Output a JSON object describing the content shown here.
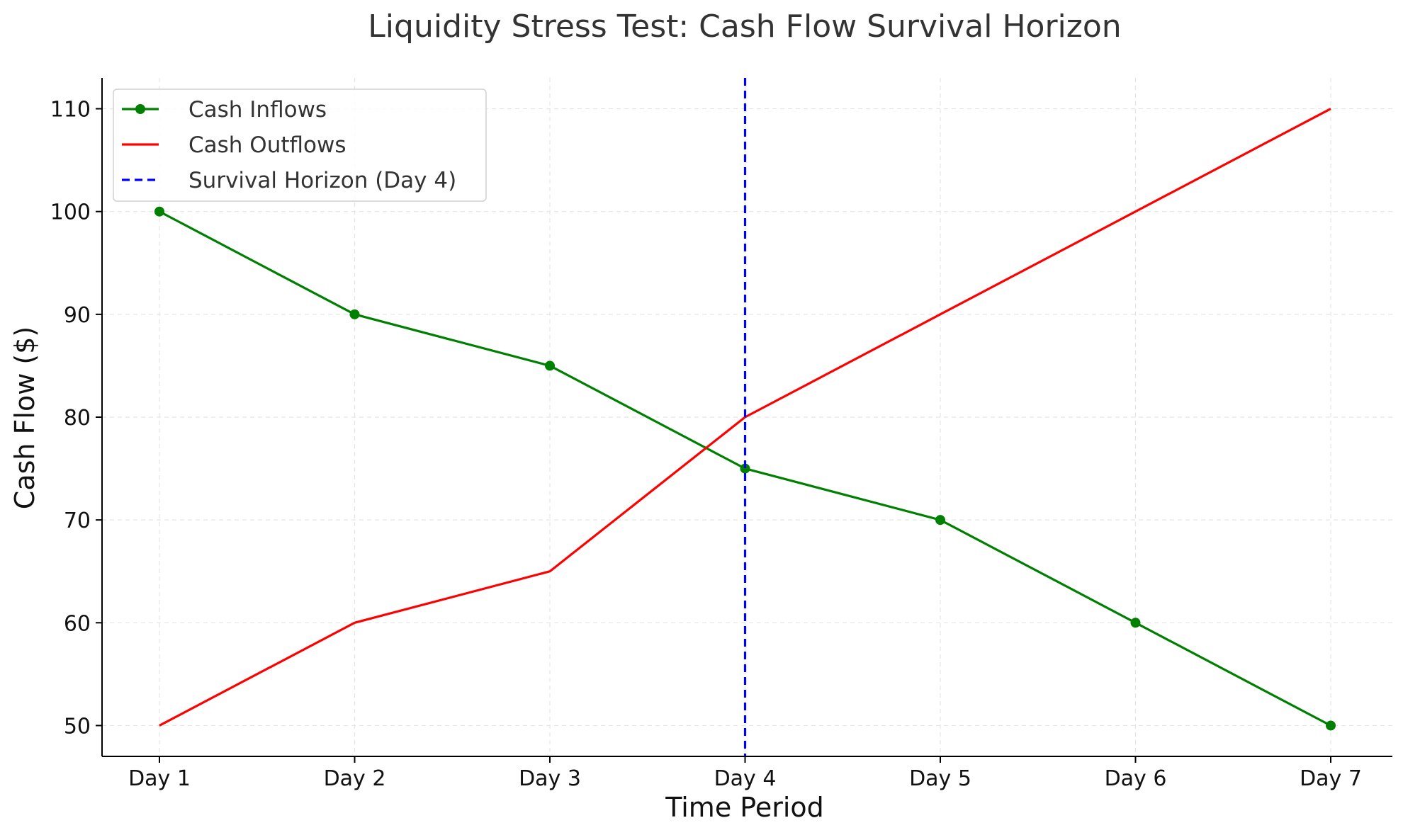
{
  "chart_data": {
    "type": "line",
    "title": "Liquidity Stress Test: Cash Flow Survival Horizon",
    "xlabel": "Time Period",
    "ylabel": "Cash Flow ($)",
    "categories": [
      "Day 1",
      "Day 2",
      "Day 3",
      "Day 4",
      "Day 5",
      "Day 6",
      "Day 7"
    ],
    "ylim": [
      47,
      113
    ],
    "yticks": [
      50,
      60,
      70,
      80,
      90,
      100,
      110
    ],
    "grid": true,
    "legend_position": "top-left",
    "series": [
      {
        "name": "Cash Inflows",
        "values": [
          100,
          90,
          85,
          75,
          70,
          60,
          50
        ],
        "color": "#008000",
        "markers": true,
        "style": "solid"
      },
      {
        "name": "Cash Outflows",
        "values": [
          50,
          60,
          65,
          80,
          90,
          100,
          110
        ],
        "color": "#ff0000",
        "markers": false,
        "style": "solid"
      }
    ],
    "vline": {
      "name": "Survival Horizon (Day 4)",
      "category": "Day 4",
      "color": "#0000ff",
      "style": "dashed"
    }
  }
}
